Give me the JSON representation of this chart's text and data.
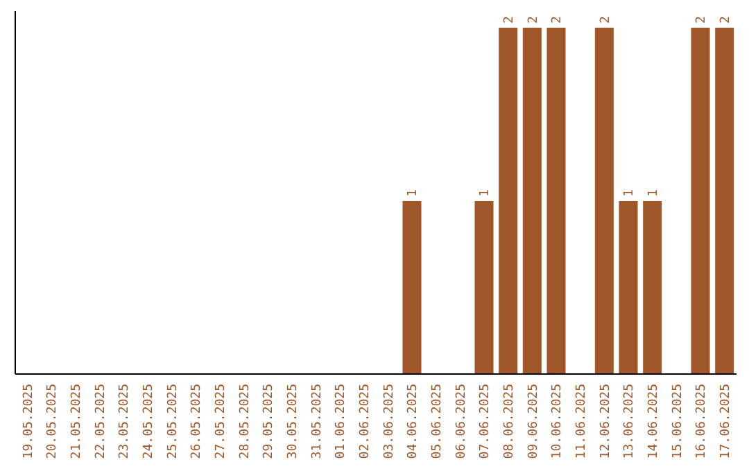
{
  "chart_data": {
    "type": "bar",
    "categories": [
      "19.05.2025",
      "20.05.2025",
      "21.05.2025",
      "22.05.2025",
      "23.05.2025",
      "24.05.2025",
      "25.05.2025",
      "26.05.2025",
      "27.05.2025",
      "28.05.2025",
      "29.05.2025",
      "30.05.2025",
      "31.05.2025",
      "01.06.2025",
      "02.06.2025",
      "03.06.2025",
      "04.06.2025",
      "05.06.2025",
      "06.06.2025",
      "07.06.2025",
      "08.06.2025",
      "09.06.2025",
      "10.06.2025",
      "11.06.2025",
      "12.06.2025",
      "13.06.2025",
      "14.06.2025",
      "15.06.2025",
      "16.06.2025",
      "17.06.2025"
    ],
    "values": [
      null,
      null,
      null,
      null,
      null,
      null,
      null,
      null,
      null,
      null,
      null,
      null,
      null,
      null,
      null,
      null,
      1,
      null,
      null,
      1,
      2,
      2,
      2,
      null,
      2,
      1,
      1,
      null,
      2,
      2
    ],
    "value_labels": [
      null,
      null,
      null,
      null,
      null,
      null,
      null,
      null,
      null,
      null,
      null,
      null,
      null,
      null,
      null,
      null,
      "1",
      null,
      null,
      "1",
      "2",
      "2",
      "2",
      null,
      "2",
      "1",
      "1",
      null,
      "2",
      "2"
    ],
    "color": "#a0572a",
    "tick_labels": "x"
  }
}
